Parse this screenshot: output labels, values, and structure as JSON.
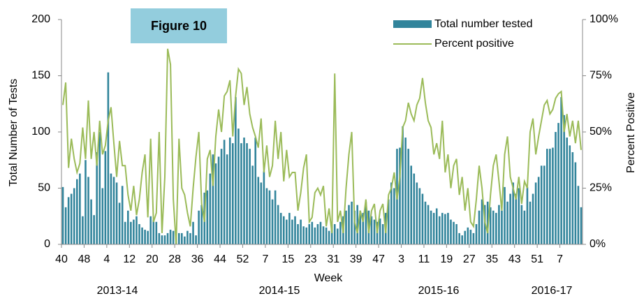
{
  "chart_data": {
    "type": "bar",
    "annotation": "Figure 10",
    "xlabel": "Week",
    "ylabel": "Total Number of Tests",
    "y2label": "Percent Positive",
    "season_labels": [
      "2013-14",
      "2014-15",
      "2015-16",
      "2016-17"
    ],
    "categories": [
      "40",
      null,
      null,
      null,
      null,
      null,
      null,
      null,
      "48",
      null,
      null,
      null,
      null,
      null,
      null,
      null,
      "4",
      null,
      null,
      null,
      null,
      null,
      null,
      null,
      "12",
      null,
      null,
      null,
      null,
      null,
      null,
      null,
      "20",
      null,
      null,
      null,
      null,
      null,
      null,
      null,
      "28",
      null,
      null,
      null,
      null,
      null,
      null,
      null,
      "36",
      null,
      null,
      null,
      null,
      null,
      null,
      null,
      "44",
      null,
      null,
      null,
      null,
      null,
      null,
      null,
      "52",
      null,
      null,
      null,
      null,
      null,
      null,
      null,
      "7",
      null,
      null,
      null,
      null,
      null,
      null,
      null,
      "15",
      null,
      null,
      null,
      null,
      null,
      null,
      null,
      "23",
      null,
      null,
      null,
      null,
      null,
      null,
      null,
      "31",
      null,
      null,
      null,
      null,
      null,
      null,
      null,
      "39",
      null,
      null,
      null,
      null,
      null,
      null,
      null,
      "47",
      null,
      null,
      null,
      null,
      null,
      null,
      null,
      "3",
      null,
      null,
      null,
      null,
      null,
      null,
      null,
      "11",
      null,
      null,
      null,
      null,
      null,
      null,
      null,
      "19",
      null,
      null,
      null,
      null,
      null,
      null,
      null,
      "27",
      null,
      null,
      null,
      null,
      null,
      null,
      null,
      "35",
      null,
      null,
      null,
      null,
      null,
      null,
      null,
      "43",
      null,
      null,
      null,
      null,
      null,
      null,
      null,
      "51",
      null,
      null,
      null,
      null,
      null,
      null,
      null,
      "7",
      null,
      null,
      null,
      null,
      null,
      null,
      null
    ],
    "series": [
      {
        "name": "Total number tested",
        "type": "bar",
        "color": "#31849b",
        "values": [
          51,
          33,
          42,
          45,
          50,
          58,
          63,
          25,
          75,
          60,
          40,
          26,
          82,
          100,
          50,
          83,
          153,
          63,
          60,
          55,
          37,
          52,
          20,
          30,
          20,
          22,
          25,
          18,
          15,
          13,
          12,
          25,
          22,
          20,
          10,
          8,
          8,
          10,
          13,
          12,
          13,
          10,
          10,
          7,
          12,
          10,
          20,
          8,
          30,
          35,
          46,
          48,
          63,
          80,
          72,
          78,
          85,
          93,
          80,
          95,
          90,
          131,
          103,
          90,
          95,
          90,
          85,
          70,
          95,
          60,
          55,
          65,
          50,
          48,
          40,
          48,
          35,
          28,
          25,
          22,
          28,
          22,
          25,
          18,
          22,
          16,
          15,
          18,
          20,
          15,
          18,
          20,
          16,
          15,
          12,
          18,
          18,
          14,
          20,
          25,
          30,
          35,
          38,
          30,
          35,
          30,
          28,
          38,
          30,
          25,
          22,
          20,
          23,
          18,
          28,
          40,
          55,
          50,
          85,
          86,
          105,
          95,
          85,
          70,
          63,
          55,
          50,
          45,
          38,
          35,
          30,
          28,
          32,
          25,
          28,
          27,
          28,
          22,
          20,
          18,
          10,
          8,
          12,
          15,
          13,
          10,
          18,
          30,
          40,
          35,
          38,
          33,
          30,
          28,
          35,
          30,
          51,
          38,
          45,
          55,
          45,
          50,
          35,
          30,
          51,
          38,
          45,
          55,
          60,
          70,
          70,
          85,
          85,
          86,
          100,
          108,
          131,
          115,
          95,
          88,
          82,
          73,
          52,
          33
        ]
      },
      {
        "name": "Percent positive",
        "type": "line",
        "axis": "y2",
        "color": "#9bbb59",
        "values": [
          62,
          72,
          34,
          47,
          38,
          32,
          36,
          52,
          38,
          64,
          38,
          50,
          35,
          55,
          40,
          44,
          55,
          61,
          45,
          30,
          46,
          35,
          35,
          22,
          15,
          26,
          13,
          20,
          32,
          40,
          12,
          47,
          10,
          14,
          50,
          5,
          30,
          87,
          80,
          20,
          0,
          47,
          25,
          22,
          14,
          8,
          25,
          39,
          50,
          18,
          10,
          38,
          42,
          26,
          48,
          60,
          50,
          66,
          68,
          73,
          48,
          66,
          78,
          76,
          62,
          70,
          58,
          52,
          48,
          43,
          56,
          32,
          44,
          30,
          35,
          55,
          38,
          50,
          28,
          42,
          30,
          32,
          32,
          15,
          23,
          34,
          40,
          10,
          12,
          23,
          25,
          22,
          26,
          8,
          16,
          5,
          76,
          10,
          15,
          5,
          25,
          40,
          50,
          10,
          5,
          15,
          10,
          20,
          5,
          15,
          18,
          5,
          15,
          18,
          5,
          22,
          25,
          32,
          20,
          30,
          52,
          55,
          63,
          58,
          55,
          62,
          65,
          74,
          63,
          55,
          52,
          40,
          45,
          38,
          55,
          32,
          40,
          25,
          35,
          38,
          22,
          30,
          15,
          25,
          10,
          8,
          20,
          35,
          25,
          10,
          5,
          22,
          35,
          40,
          28,
          15,
          40,
          48,
          30,
          25,
          20,
          30,
          18,
          28,
          25,
          50,
          56,
          40,
          48,
          55,
          62,
          64,
          58,
          60,
          65,
          67,
          68,
          50,
          58,
          48,
          55,
          45,
          55,
          42
        ]
      }
    ],
    "ylim": [
      0,
      200
    ],
    "yticks": [
      0,
      50,
      100,
      150,
      200
    ],
    "y2lim": [
      0,
      100
    ],
    "y2ticks": [
      {
        "value": 0,
        "label": "0%"
      },
      {
        "value": 25,
        "label": "25%"
      },
      {
        "value": 50,
        "label": "50%"
      },
      {
        "value": 75,
        "label": "75%"
      },
      {
        "value": 100,
        "label": "100%"
      }
    ],
    "grid": false,
    "legend": "top-right"
  }
}
